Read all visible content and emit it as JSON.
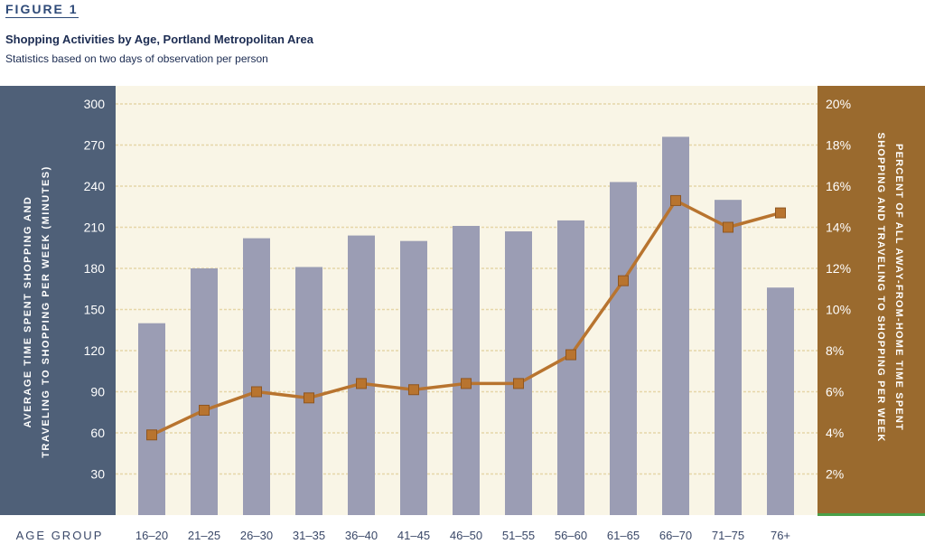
{
  "figure_label": "FIGURE 1",
  "title": "Shopping Activities by Age, Portland Metropolitan Area",
  "subtitle": "Statistics based on two days of observation per person",
  "colors": {
    "left_panel": "#4f6078",
    "right_panel": "#9a6a2e",
    "bars": "#9b9db4",
    "line": "#b8742f",
    "grid": "#e6d6a8",
    "plot_bg": "#f9f5e6"
  },
  "chart_data": {
    "type": "bar",
    "xlabel": "AGE GROUP",
    "ylabel_left": "AVERAGE TIME SPENT SHOPPING AND TRAVELING TO SHOPPING PER WEEK (MINUTES)",
    "ylabel_right": "PERCENT OF ALL AWAY-FROM-HOME TIME SPENT SHOPPING AND TRAVELING TO SHOPPING PER WEEK",
    "categories": [
      "16–20",
      "21–25",
      "26–30",
      "31–35",
      "36–40",
      "41–45",
      "46–50",
      "51–55",
      "56–60",
      "61–65",
      "66–70",
      "71–75",
      "76+"
    ],
    "y_left": {
      "lim": [
        0,
        300
      ],
      "ticks": [
        "30",
        "60",
        "90",
        "120",
        "150",
        "180",
        "210",
        "240",
        "270",
        "300"
      ]
    },
    "y_right": {
      "lim": [
        0,
        20
      ],
      "ticks": [
        "2%",
        "4%",
        "6%",
        "8%",
        "10%",
        "12%",
        "14%",
        "16%",
        "18%",
        "20%"
      ]
    },
    "series": [
      {
        "type": "bar",
        "axis": "left",
        "values": [
          140,
          180,
          202,
          181,
          204,
          200,
          211,
          207,
          215,
          243,
          276,
          230,
          166
        ]
      },
      {
        "type": "line",
        "axis": "right",
        "values": [
          3.9,
          5.1,
          6.0,
          5.7,
          6.4,
          6.1,
          6.4,
          6.4,
          7.8,
          11.4,
          15.3,
          14.0,
          14.7
        ]
      }
    ],
    "grid": true
  }
}
